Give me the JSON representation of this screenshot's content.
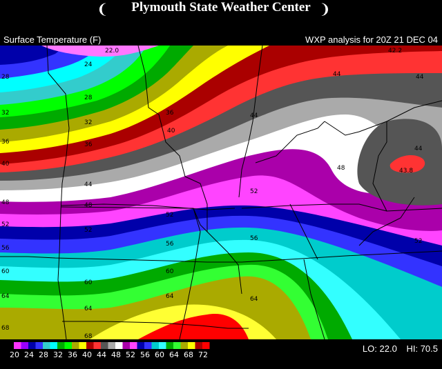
{
  "banner": {
    "title": "Plymouth State Weather Center"
  },
  "header": {
    "field_label": "Surface Temperature (F)",
    "analysis_label": "WXP analysis for 20Z 21 DEC 04"
  },
  "map": {
    "contour_interval": 4,
    "bands": [
      {
        "lo": 20,
        "color": "#ff77ff"
      },
      {
        "lo": 24,
        "color": "#3333ff"
      },
      {
        "lo": 28,
        "color": "#00ffff"
      },
      {
        "lo": 32,
        "color": "#00cc00"
      },
      {
        "lo": 36,
        "color": "#aaaa00"
      },
      {
        "lo": 40,
        "color": "#ffff33"
      },
      {
        "lo": 44,
        "color": "#ff0000"
      },
      {
        "lo": 48,
        "color": "#555555"
      },
      {
        "lo": 52,
        "color": "#aaaaaa"
      },
      {
        "lo": 56,
        "color": "#ffffff"
      }
    ],
    "contour_labels": [
      {
        "text": "22.0",
        "color": "#000"
      },
      {
        "text": "24",
        "color": "#000"
      },
      {
        "text": "28",
        "color": "#000"
      },
      {
        "text": "32",
        "color": "#000"
      },
      {
        "text": "36",
        "color": "#000"
      },
      {
        "text": "40",
        "color": "#000"
      },
      {
        "text": "44",
        "color": "#000"
      },
      {
        "text": "48",
        "color": "#000"
      },
      {
        "text": "52",
        "color": "#000"
      },
      {
        "text": "56",
        "color": "#000"
      },
      {
        "text": "60",
        "color": "#000"
      },
      {
        "text": "64",
        "color": "#000"
      },
      {
        "text": "68",
        "color": "#000"
      },
      {
        "text": "42.2",
        "color": "#000"
      },
      {
        "text": "43.8",
        "color": "#000"
      }
    ]
  },
  "legend": {
    "swatches": [
      {
        "value": "20",
        "color": "#ff33ff"
      },
      {
        "value": "",
        "color": "#9900ff"
      },
      {
        "value": "24",
        "color": "#0000aa"
      },
      {
        "value": "",
        "color": "#3333ff"
      },
      {
        "value": "28",
        "color": "#33cccc"
      },
      {
        "value": "",
        "color": "#00ffff"
      },
      {
        "value": "32",
        "color": "#00aa00"
      },
      {
        "value": "",
        "color": "#00ff00"
      },
      {
        "value": "36",
        "color": "#aaaa00"
      },
      {
        "value": "",
        "color": "#ffff00"
      },
      {
        "value": "40",
        "color": "#aa0000"
      },
      {
        "value": "",
        "color": "#ff3333"
      },
      {
        "value": "44",
        "color": "#555555"
      },
      {
        "value": "",
        "color": "#aaaaaa"
      },
      {
        "value": "48",
        "color": "#ffffff"
      },
      {
        "value": "",
        "color": "#aa00aa"
      },
      {
        "value": "52",
        "color": "#ff44ff"
      },
      {
        "value": "",
        "color": "#0000aa"
      },
      {
        "value": "56",
        "color": "#3333ff"
      },
      {
        "value": "",
        "color": "#00cccc"
      },
      {
        "value": "60",
        "color": "#33ffff"
      },
      {
        "value": "",
        "color": "#00aa00"
      },
      {
        "value": "64",
        "color": "#33ff33"
      },
      {
        "value": "",
        "color": "#aaaa00"
      },
      {
        "value": "68",
        "color": "#ffff00"
      },
      {
        "value": "",
        "color": "#aa0000"
      },
      {
        "value": "72",
        "color": "#ff0000"
      }
    ],
    "lo_label": "LO:",
    "lo_value": "22.0",
    "hi_label": "HI:",
    "hi_value": "70.5"
  }
}
